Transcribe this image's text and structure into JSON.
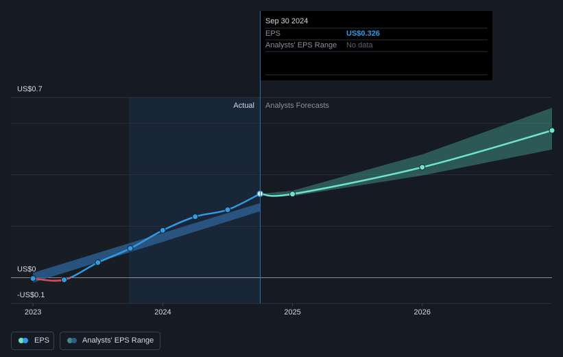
{
  "chart_data": {
    "type": "line",
    "xlim": [
      2022.83,
      2027
    ],
    "xticks": [
      2023,
      2024,
      2025,
      2026
    ],
    "ylim": [
      -0.1,
      0.7
    ],
    "yticks": [
      {
        "value": 0.7,
        "label": "US$0.7"
      },
      {
        "value": 0,
        "label": "US$0"
      },
      {
        "value": -0.1,
        "label": "-US$0.1"
      }
    ],
    "grid_values": [
      0.2,
      0.4,
      0.6
    ],
    "negative_color": "#e0484e",
    "series": [
      {
        "name": "EPS",
        "color": "#2f9be6",
        "x": [
          2023.0,
          2023.24,
          2023.5,
          2023.75,
          2024.0,
          2024.25,
          2024.5,
          2024.75
        ],
        "values": [
          -0.003,
          -0.008,
          0.059,
          0.114,
          0.184,
          0.237,
          0.264,
          0.326
        ]
      }
    ],
    "forecast": {
      "color": "#6fe3cf",
      "x": [
        2024.75,
        2025.0,
        2026.0,
        2027.0
      ],
      "values": [
        0.326,
        0.325,
        0.429,
        0.572
      ]
    },
    "ranges": [
      {
        "name": "Analysts' EPS Range",
        "color": "#2b5d8c",
        "x": [
          2023.0,
          2024.75
        ],
        "low": [
          -0.019,
          0.258
        ],
        "high": [
          0.019,
          0.29
        ]
      },
      {
        "color": "#3f8c80",
        "x": [
          2024.75,
          2025.0,
          2026.0,
          2027.0
        ],
        "low": [
          0.326,
          0.317,
          0.397,
          0.498
        ],
        "high": [
          0.326,
          0.338,
          0.479,
          0.66
        ]
      }
    ],
    "annotations": {
      "actual": "Actual",
      "forecast": "Analysts Forecasts"
    },
    "tooltip": {
      "title": "Sep 30 2024",
      "rows": [
        [
          "EPS",
          "US$0.326"
        ],
        [
          "Analysts' EPS Range",
          "No data"
        ]
      ]
    }
  }
}
